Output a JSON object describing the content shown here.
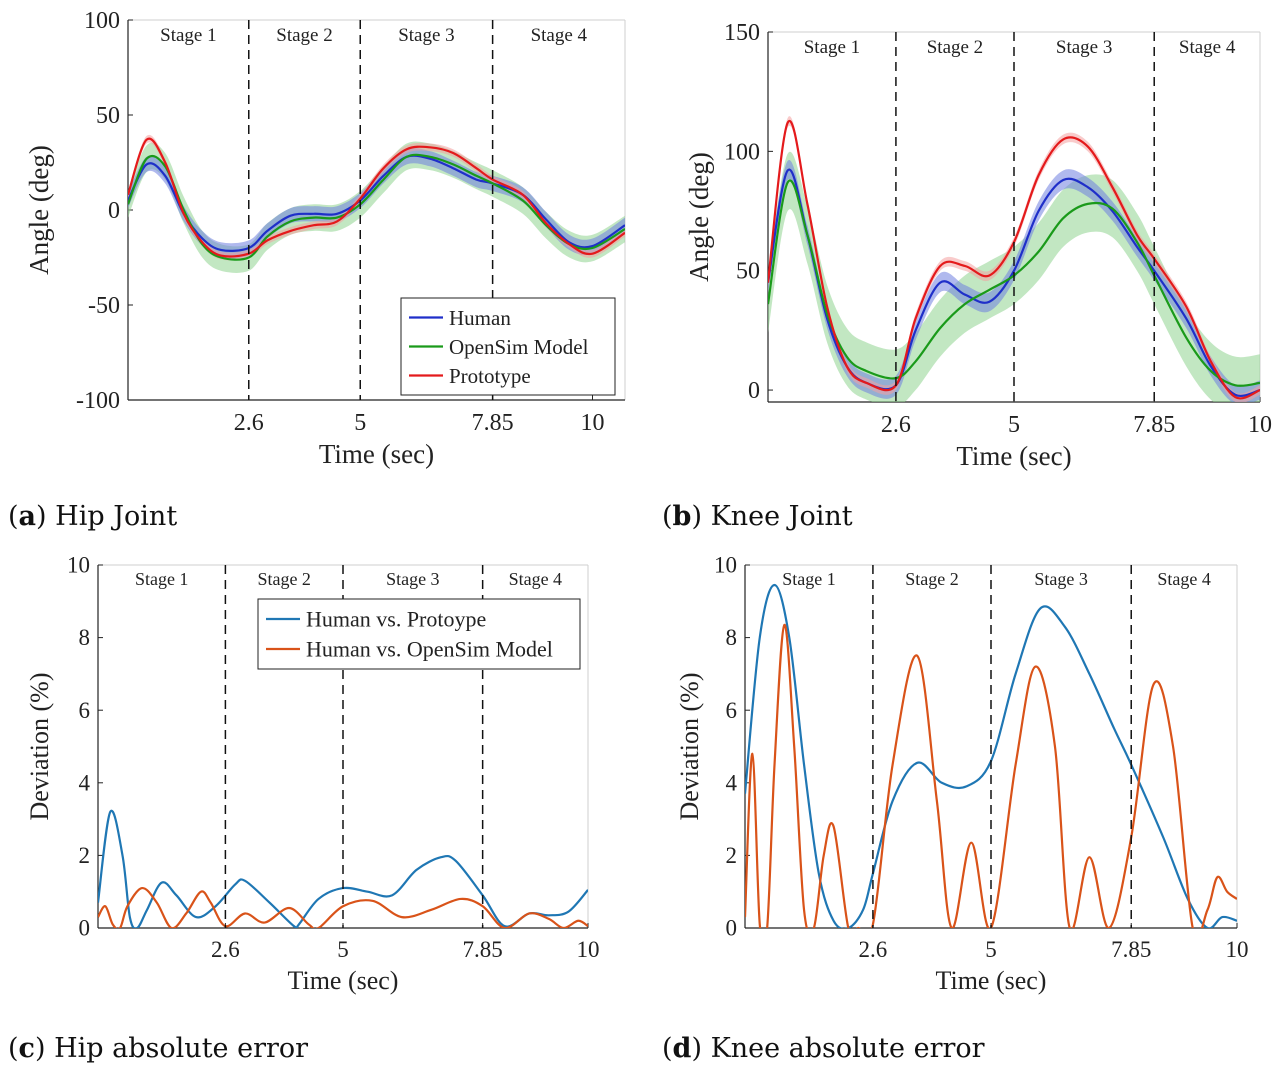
{
  "captions": {
    "a": {
      "letter": "a",
      "text": "Hip Joint"
    },
    "b": {
      "letter": "b",
      "text": "Knee Joint"
    },
    "c": {
      "letter": "c",
      "text": "Hip absolute error"
    },
    "d": {
      "letter": "d",
      "text": "Knee absolute error"
    }
  },
  "colors": {
    "human": "#1f2fc9",
    "opensim": "#1a9a1a",
    "prototype": "#e41a1c",
    "band_green": "#8fd48f",
    "band_blue": "#6f7fe0",
    "band_red": "#f4a0a0",
    "err_blue": "#1f77b4",
    "err_orange": "#d95319"
  },
  "chart_data": [
    {
      "id": "a",
      "type": "line",
      "xlabel": "Time (sec)",
      "ylabel": "Angle (deg)",
      "xlim": [
        0,
        10.7
      ],
      "ylim": [
        -100,
        100
      ],
      "xticks": [
        2.6,
        5,
        7.85,
        10
      ],
      "xtick_labels": [
        "2.6",
        "5",
        "7.85",
        "10"
      ],
      "yticks": [
        -100,
        -50,
        0,
        50,
        100
      ],
      "stage_lines": [
        2.6,
        5,
        7.85
      ],
      "stage_labels": [
        "Stage 1",
        "Stage 2",
        "Stage 3",
        "Stage 4"
      ],
      "legend": {
        "position": "lower-right",
        "entries": [
          "Human",
          "OpenSim Model",
          "Prototype"
        ]
      },
      "bands": [
        {
          "of": "OpenSim Model",
          "width": 7
        },
        {
          "of": "Human",
          "width": 4
        },
        {
          "of": "Prototype",
          "width": 2
        }
      ],
      "series": [
        {
          "name": "Human",
          "color": "#1f2fc9",
          "x": [
            0,
            0.4,
            0.8,
            1.2,
            1.6,
            2.0,
            2.6,
            3.0,
            3.5,
            4.0,
            4.5,
            5.0,
            5.5,
            6.0,
            6.5,
            7.0,
            7.5,
            7.85,
            8.5,
            9.0,
            9.5,
            10.0,
            10.7
          ],
          "y": [
            5,
            24,
            18,
            -2,
            -15,
            -21,
            -20,
            -11,
            -3,
            -2,
            -2,
            5,
            18,
            28,
            27,
            22,
            16,
            14,
            8,
            -5,
            -17,
            -19,
            -8
          ]
        },
        {
          "name": "OpenSim Model",
          "color": "#1a9a1a",
          "x": [
            0,
            0.4,
            0.8,
            1.2,
            1.6,
            2.0,
            2.6,
            3.0,
            3.5,
            4.0,
            4.5,
            5.0,
            5.5,
            6.0,
            6.5,
            7.0,
            7.5,
            7.85,
            8.5,
            9.0,
            9.5,
            10.0,
            10.7
          ],
          "y": [
            3,
            27,
            23,
            0,
            -18,
            -25,
            -25,
            -14,
            -6,
            -4,
            -4,
            3,
            16,
            28,
            28,
            24,
            18,
            14,
            5,
            -8,
            -18,
            -20,
            -10
          ]
        },
        {
          "name": "Prototype",
          "color": "#e41a1c",
          "x": [
            0,
            0.4,
            0.8,
            1.2,
            1.6,
            2.0,
            2.6,
            3.0,
            3.5,
            4.0,
            4.5,
            5.0,
            5.5,
            6.0,
            6.5,
            7.0,
            7.5,
            7.85,
            8.5,
            9.0,
            9.5,
            10.0,
            10.7
          ],
          "y": [
            8,
            37,
            25,
            -2,
            -17,
            -24,
            -23,
            -16,
            -11,
            -8,
            -6,
            6,
            22,
            32,
            33,
            30,
            22,
            16,
            8,
            -7,
            -18,
            -23,
            -12
          ]
        }
      ]
    },
    {
      "id": "b",
      "type": "line",
      "xlabel": "Time (sec)",
      "ylabel": "Angle (deg)",
      "xlim": [
        0,
        10
      ],
      "ylim": [
        -5,
        150
      ],
      "xticks": [
        2.6,
        5,
        7.85,
        10
      ],
      "xtick_labels": [
        "2.6",
        "5",
        "7.85",
        "10"
      ],
      "yticks": [
        0,
        50,
        100,
        150
      ],
      "stage_lines": [
        2.6,
        5,
        7.85
      ],
      "stage_labels": [
        "Stage 1",
        "Stage 2",
        "Stage 3",
        "Stage 4"
      ],
      "legend": null,
      "bands": [
        {
          "of": "OpenSim Model",
          "width": 12
        },
        {
          "of": "Human",
          "width": 4
        },
        {
          "of": "Prototype",
          "width": 2
        }
      ],
      "series": [
        {
          "name": "Human",
          "color": "#1f2fc9",
          "x": [
            0,
            0.4,
            0.8,
            1.2,
            1.6,
            2.0,
            2.6,
            3.0,
            3.5,
            4.0,
            4.5,
            5.0,
            5.5,
            6.0,
            6.5,
            7.0,
            7.5,
            7.85,
            8.5,
            9.0,
            9.5,
            10.0
          ],
          "y": [
            45,
            92,
            65,
            30,
            10,
            3,
            2,
            25,
            45,
            40,
            37,
            50,
            75,
            88,
            85,
            75,
            60,
            50,
            30,
            10,
            -2,
            0
          ]
        },
        {
          "name": "OpenSim Model",
          "color": "#1a9a1a",
          "x": [
            0,
            0.4,
            0.8,
            1.2,
            1.6,
            2.0,
            2.6,
            3.0,
            3.5,
            4.0,
            4.5,
            5.0,
            5.5,
            6.0,
            6.5,
            7.0,
            7.5,
            7.85,
            8.5,
            9.0,
            9.5,
            10.0
          ],
          "y": [
            36,
            87,
            65,
            32,
            14,
            8,
            5,
            12,
            26,
            36,
            42,
            48,
            58,
            72,
            78,
            76,
            62,
            48,
            22,
            8,
            2,
            3
          ]
        },
        {
          "name": "Prototype",
          "color": "#e41a1c",
          "x": [
            0,
            0.4,
            0.8,
            1.2,
            1.6,
            2.0,
            2.6,
            3.0,
            3.5,
            4.0,
            4.5,
            5.0,
            5.5,
            6.0,
            6.5,
            7.0,
            7.5,
            7.85,
            8.5,
            9.0,
            9.5,
            10.0
          ],
          "y": [
            45,
            112,
            78,
            35,
            10,
            3,
            2,
            30,
            52,
            52,
            48,
            62,
            90,
            105,
            102,
            85,
            65,
            55,
            35,
            12,
            -3,
            0
          ]
        }
      ]
    },
    {
      "id": "c",
      "type": "line",
      "xlabel": "Time (sec)",
      "ylabel": "Deviation (%)",
      "xlim": [
        0,
        10
      ],
      "ylim": [
        0,
        10
      ],
      "xticks": [
        2.6,
        5,
        7.85,
        10
      ],
      "xtick_labels": [
        "2.6",
        "5",
        "7.85",
        "10"
      ],
      "yticks": [
        0,
        2,
        4,
        6,
        8,
        10
      ],
      "stage_lines": [
        2.6,
        5,
        7.85
      ],
      "stage_labels": [
        "Stage 1",
        "Stage 2",
        "Stage 3",
        "Stage 4"
      ],
      "legend": {
        "position": "top-right",
        "entries": [
          "Human vs. Protoype",
          "Human vs. OpenSim Model"
        ]
      },
      "series": [
        {
          "name": "Human vs. Protoype",
          "color": "#1f77b4",
          "x": [
            0,
            0.25,
            0.5,
            0.65,
            0.8,
            1.0,
            1.3,
            1.6,
            2.0,
            2.4,
            2.8,
            3.0,
            3.5,
            4.0,
            4.1,
            4.5,
            5.0,
            5.5,
            6.0,
            6.5,
            7.0,
            7.3,
            7.85,
            8.3,
            8.8,
            9.2,
            9.6,
            10.0
          ],
          "y": [
            0.7,
            3.2,
            2.0,
            0.3,
            0.0,
            0.5,
            1.25,
            0.9,
            0.3,
            0.6,
            1.2,
            1.3,
            0.7,
            0.05,
            0.1,
            0.8,
            1.1,
            1.0,
            0.9,
            1.6,
            1.95,
            1.85,
            0.9,
            0.05,
            0.4,
            0.35,
            0.45,
            1.05
          ]
        },
        {
          "name": "Human vs. OpenSim Model",
          "color": "#d95319",
          "x": [
            0,
            0.15,
            0.3,
            0.45,
            0.6,
            0.9,
            1.2,
            1.5,
            1.8,
            2.1,
            2.3,
            2.6,
            3.0,
            3.4,
            3.9,
            4.3,
            4.5,
            5.0,
            5.6,
            6.2,
            6.8,
            7.4,
            7.85,
            8.3,
            8.8,
            9.2,
            9.5,
            9.8,
            10.0
          ],
          "y": [
            0.3,
            0.6,
            0.1,
            0.0,
            0.6,
            1.1,
            0.7,
            0.0,
            0.4,
            1.0,
            0.7,
            0.05,
            0.4,
            0.15,
            0.55,
            0.1,
            0.0,
            0.6,
            0.75,
            0.3,
            0.5,
            0.8,
            0.6,
            0.0,
            0.4,
            0.25,
            0.0,
            0.2,
            0.05
          ]
        }
      ]
    },
    {
      "id": "d",
      "type": "line",
      "xlabel": "Time (sec)",
      "ylabel": "Deviation (%)",
      "xlim": [
        0,
        10
      ],
      "ylim": [
        0,
        10
      ],
      "xticks": [
        2.6,
        5,
        7.85,
        10
      ],
      "xtick_labels": [
        "2.6",
        "5",
        "7.85",
        "10"
      ],
      "yticks": [
        0,
        2,
        4,
        6,
        8,
        10
      ],
      "stage_lines": [
        2.6,
        5,
        7.85
      ],
      "stage_labels": [
        "Stage 1",
        "Stage 2",
        "Stage 3",
        "Stage 4"
      ],
      "legend": null,
      "series": [
        {
          "name": "Human vs. Protoype",
          "color": "#1f77b4",
          "x": [
            0,
            0.3,
            0.6,
            0.9,
            1.2,
            1.5,
            1.8,
            2.1,
            2.4,
            2.6,
            3.0,
            3.5,
            4.0,
            4.5,
            5.0,
            5.5,
            6.0,
            6.5,
            7.0,
            7.5,
            7.85,
            8.5,
            9.0,
            9.4,
            9.7,
            10.0
          ],
          "y": [
            3.7,
            8.0,
            9.45,
            8.0,
            4.5,
            1.5,
            0.2,
            0.0,
            0.5,
            1.5,
            3.5,
            4.55,
            4.0,
            3.9,
            4.6,
            7.0,
            8.8,
            8.3,
            7.0,
            5.5,
            4.5,
            2.5,
            0.8,
            0.0,
            0.3,
            0.2
          ]
        },
        {
          "name": "Human vs. OpenSim Model",
          "color": "#d95319",
          "x": [
            0,
            0.15,
            0.3,
            0.45,
            0.6,
            0.8,
            1.0,
            1.2,
            1.4,
            1.6,
            1.8,
            2.1,
            2.3,
            2.6,
            3.0,
            3.5,
            3.9,
            4.2,
            4.6,
            5.0,
            5.5,
            5.9,
            6.3,
            6.6,
            7.0,
            7.4,
            7.85,
            8.3,
            8.7,
            9.1,
            9.4,
            9.6,
            9.8,
            10.0
          ],
          "y": [
            0.3,
            4.8,
            0.1,
            0.0,
            4.5,
            8.35,
            5.0,
            0.5,
            0.0,
            2.0,
            2.8,
            0.0,
            0.0,
            0.1,
            4.5,
            7.5,
            3.5,
            0.0,
            2.35,
            0.0,
            4.5,
            7.2,
            5.0,
            0.0,
            1.95,
            0.0,
            2.5,
            6.7,
            5.0,
            0.0,
            0.5,
            1.4,
            1.0,
            0.8
          ]
        }
      ]
    }
  ]
}
